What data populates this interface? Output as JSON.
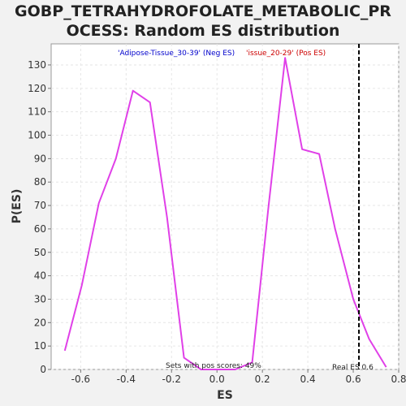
{
  "chart_data": {
    "type": "line",
    "title_line1": "GOBP_TETRAHYDROFOLATE_METABOLIC_PR",
    "title_line2": "OCESS: Random ES distribution",
    "xlabel": "ES",
    "ylabel": "P(ES)",
    "xlim": [
      -0.73,
      0.8
    ],
    "ylim": [
      0,
      139
    ],
    "x_ticks": [
      -0.6,
      -0.4,
      -0.2,
      0.0,
      0.2,
      0.4,
      0.6,
      0.8
    ],
    "x_tick_labels": [
      "-0.6",
      "-0.4",
      "-0.2",
      "0.0",
      "0.2",
      "0.4",
      "0.6",
      "0.8"
    ],
    "y_ticks": [
      0,
      10,
      20,
      30,
      40,
      50,
      60,
      70,
      80,
      90,
      100,
      110,
      120,
      130
    ],
    "y_tick_labels": [
      "0",
      "10",
      "20",
      "30",
      "40",
      "50",
      "60",
      "70",
      "80",
      "90",
      "100",
      "110",
      "120",
      "130"
    ],
    "grid": true,
    "series": [
      {
        "color": "#e040e8",
        "x": [
          -0.67,
          -0.595,
          -0.52,
          -0.445,
          -0.37,
          -0.295,
          -0.22,
          -0.145,
          -0.07,
          0.005,
          0.08,
          0.155,
          0.225,
          0.3,
          0.375,
          0.45,
          0.52,
          0.6,
          0.67,
          0.745
        ],
        "y": [
          8,
          36,
          71,
          90,
          119,
          114,
          65,
          5,
          0,
          0,
          0,
          3,
          68,
          133,
          94,
          92,
          60,
          30,
          13,
          1
        ]
      }
    ],
    "real_es": 0.625,
    "legend_neg": "'Adipose-Tissue_30-39' (Neg ES)",
    "legend_pos": "'issue_20-29' (Pos ES)",
    "legend_neg_color": "#0000cc",
    "legend_pos_color": "#cc0000",
    "annotation_pos_scores": "Sets with pos scores: 49%",
    "annotation_real_es": "Real ES 0.6"
  }
}
